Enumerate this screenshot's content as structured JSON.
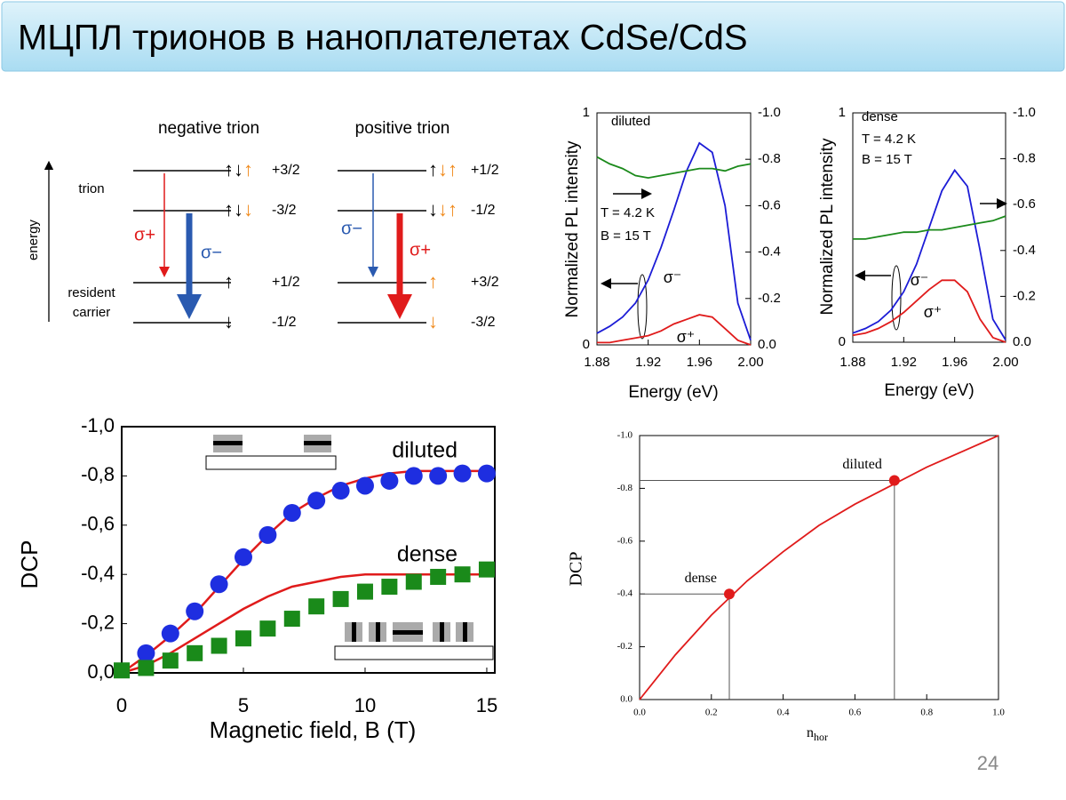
{
  "title": "МЦПЛ трионов в наноплателетах CdSe/CdS",
  "page_number": "24",
  "diagram": {
    "energy": "energy",
    "trion": "trion",
    "resident": "resident",
    "carrier": "carrier",
    "negative": {
      "title": "negative trion",
      "thin": "σ+",
      "thick": "σ−",
      "levels": [
        {
          "electron": "↑↓",
          "hole": "↑",
          "label": "+3/2"
        },
        {
          "electron": "↑↓",
          "hole": "↓",
          "label": "-3/2"
        },
        {
          "electron": "↑",
          "label": "+1/2"
        },
        {
          "electron": "↓",
          "label": "-1/2"
        }
      ]
    },
    "positive": {
      "title": "positive trion",
      "thin": "σ−",
      "thick": "σ+",
      "levels": [
        {
          "electron": "↑",
          "hole": "↓↑",
          "label": "+1/2"
        },
        {
          "electron": "↓",
          "hole": "↓↑",
          "label": "-1/2"
        },
        {
          "hole": "↑",
          "label": "+3/2"
        },
        {
          "hole": "↓",
          "label": "-3/2"
        }
      ]
    }
  },
  "chart_data": [
    {
      "type": "line",
      "xlabel": "Energy (eV)",
      "ylabel": "Normalized PL intensity",
      "annotations": [
        "diluted",
        "T = 4.2 K",
        "B = 15 T"
      ],
      "xlim": [
        1.88,
        2
      ],
      "xticks": [
        1.88,
        1.92,
        1.96,
        {
          "value": 2,
          "label": "2.00"
        }
      ],
      "ylim": [
        0,
        1
      ],
      "yticks": [
        0,
        1
      ],
      "y2lim": [
        0,
        -1
      ],
      "y2ticks": [
        {
          "value": 0,
          "label": "0.0"
        },
        {
          "value": -0.2,
          "label": "-0.2"
        },
        {
          "value": -0.4,
          "label": "-0.4"
        },
        {
          "value": -0.6,
          "label": "-0.6"
        },
        {
          "value": -0.8,
          "label": "-0.8"
        },
        {
          "value": -1,
          "label": "-1.0"
        }
      ],
      "x": [
        1.88,
        1.89,
        1.9,
        1.91,
        1.92,
        1.93,
        1.94,
        1.95,
        1.96,
        1.97,
        1.98,
        1.99,
        2
      ],
      "series": [
        {
          "name": "σ⁻",
          "color": "#1c1cd6",
          "values": [
            0.05,
            0.08,
            0.12,
            0.18,
            0.28,
            0.42,
            0.58,
            0.75,
            0.87,
            0.83,
            0.6,
            0.18,
            0.02
          ]
        },
        {
          "name": "σ⁺",
          "color": "#e01b1b",
          "values": [
            0.01,
            0.01,
            0.02,
            0.03,
            0.04,
            0.06,
            0.09,
            0.11,
            0.13,
            0.12,
            0.07,
            0.02,
            0
          ]
        },
        {
          "color": "#1b8a1b",
          "axis": "y2",
          "values": [
            -0.81,
            -0.78,
            -0.76,
            -0.73,
            -0.72,
            -0.73,
            -0.74,
            -0.75,
            -0.76,
            -0.76,
            -0.75,
            -0.77,
            -0.78
          ]
        }
      ]
    },
    {
      "type": "line",
      "xlabel": "Energy (eV)",
      "ylabel": "Normalized PL intensity",
      "annotations": [
        "dense",
        "T = 4.2 K",
        "B = 15 T"
      ],
      "xlim": [
        1.88,
        2
      ],
      "xticks": [
        1.88,
        1.92,
        1.96,
        {
          "value": 2,
          "label": "2.00"
        }
      ],
      "ylim": [
        0,
        1
      ],
      "yticks": [
        0,
        1
      ],
      "y2lim": [
        0,
        -1
      ],
      "y2ticks": [
        {
          "value": 0,
          "label": "0.0"
        },
        {
          "value": -0.2,
          "label": "-0.2"
        },
        {
          "value": -0.4,
          "label": "-0.4"
        },
        {
          "value": -0.6,
          "label": "-0.6"
        },
        {
          "value": -0.8,
          "label": "-0.8"
        },
        {
          "value": -1,
          "label": "-1.0"
        }
      ],
      "x": [
        1.88,
        1.89,
        1.9,
        1.91,
        1.92,
        1.93,
        1.94,
        1.95,
        1.96,
        1.97,
        1.98,
        1.99,
        2
      ],
      "series": [
        {
          "name": "σ⁻",
          "color": "#1c1cd6",
          "values": [
            0.04,
            0.06,
            0.09,
            0.14,
            0.22,
            0.34,
            0.5,
            0.66,
            0.75,
            0.68,
            0.4,
            0.1,
            0.01
          ]
        },
        {
          "name": "σ⁺",
          "color": "#e01b1b",
          "values": [
            0.03,
            0.04,
            0.06,
            0.09,
            0.13,
            0.18,
            0.23,
            0.27,
            0.27,
            0.22,
            0.1,
            0.02,
            0
          ]
        },
        {
          "color": "#1b8a1b",
          "axis": "y2",
          "values": [
            -0.45,
            -0.45,
            -0.46,
            -0.47,
            -0.48,
            -0.48,
            -0.49,
            -0.49,
            -0.5,
            -0.51,
            -0.52,
            -0.53,
            -0.55
          ]
        }
      ]
    },
    {
      "type": "scatter",
      "xlabel": "Magnetic field, B (T)",
      "ylabel": "DCP",
      "xlim": [
        0,
        15.33
      ],
      "xticks": [
        0,
        5,
        10,
        15
      ],
      "ylim": [
        0,
        -1
      ],
      "yticks": [
        {
          "value": 0,
          "label": "0,0"
        },
        {
          "value": -0.2,
          "label": "-0,2"
        },
        {
          "value": -0.4,
          "label": "-0,4"
        },
        {
          "value": -0.6,
          "label": "-0,6"
        },
        {
          "value": -0.8,
          "label": "-0,8"
        },
        {
          "value": -1,
          "label": "-1,0"
        }
      ],
      "series": [
        {
          "color": "#e01b1b",
          "marker": "none",
          "x": [
            0,
            1,
            2,
            3,
            4,
            5,
            6,
            7,
            8,
            9,
            10,
            11,
            12,
            13,
            14,
            15.33
          ],
          "values": [
            0,
            -0.07,
            -0.15,
            -0.24,
            -0.35,
            -0.46,
            -0.56,
            -0.65,
            -0.71,
            -0.76,
            -0.79,
            -0.81,
            -0.82,
            -0.82,
            -0.82,
            -0.82
          ]
        },
        {
          "color": "#e01b1b",
          "marker": "none",
          "x": [
            0,
            1,
            2,
            3,
            4,
            5,
            6,
            7,
            8,
            9,
            10,
            11,
            12,
            13,
            14,
            15.33
          ],
          "values": [
            0,
            -0.03,
            -0.08,
            -0.14,
            -0.2,
            -0.26,
            -0.31,
            -0.35,
            -0.37,
            -0.39,
            -0.4,
            -0.4,
            -0.4,
            -0.4,
            -0.4,
            -0.4
          ]
        },
        {
          "name": "diluted",
          "color": "#1e2ee0",
          "marker": "circle",
          "x": [
            1,
            2,
            3,
            4,
            5,
            6,
            7,
            8,
            9,
            10,
            11,
            12,
            13,
            14,
            15
          ],
          "values": [
            -0.08,
            -0.16,
            -0.25,
            -0.36,
            -0.47,
            -0.56,
            -0.65,
            -0.7,
            -0.74,
            -0.76,
            -0.78,
            -0.8,
            -0.8,
            -0.81,
            -0.81
          ]
        },
        {
          "name": "dense",
          "color": "#1a8a1a",
          "marker": "square",
          "x": [
            0,
            1,
            2,
            3,
            4,
            5,
            6,
            7,
            8,
            9,
            10,
            11,
            12,
            13,
            14,
            15
          ],
          "values": [
            -0.01,
            -0.02,
            -0.05,
            -0.08,
            -0.11,
            -0.14,
            -0.18,
            -0.22,
            -0.27,
            -0.3,
            -0.33,
            -0.35,
            -0.37,
            -0.39,
            -0.4,
            -0.42
          ]
        }
      ]
    },
    {
      "type": "line",
      "xlabel": "n",
      "xlabel_sub": "hor",
      "ylabel": "DCP",
      "xlim": [
        0,
        1
      ],
      "xticks": [
        {
          "value": 0,
          "label": "0.0"
        },
        {
          "value": 0.2,
          "label": "0.2"
        },
        {
          "value": 0.4,
          "label": "0.4"
        },
        {
          "value": 0.6,
          "label": "0.6"
        },
        {
          "value": 0.8,
          "label": "0.8"
        },
        {
          "value": 1,
          "label": "1.0"
        }
      ],
      "ylim": [
        0,
        -1
      ],
      "yticks": [
        {
          "value": 0,
          "label": "0.0"
        },
        {
          "value": -0.2,
          "label": "-0.2"
        },
        {
          "value": -0.4,
          "label": "-0.4"
        },
        {
          "value": -0.6,
          "label": "-0.6"
        },
        {
          "value": -0.8,
          "label": "-0.8"
        },
        {
          "value": -1,
          "label": "-1.0"
        }
      ],
      "x": [
        0,
        0.1,
        0.2,
        0.3,
        0.4,
        0.5,
        0.6,
        0.7,
        0.8,
        0.9,
        1
      ],
      "series": [
        {
          "color": "#e01b1b",
          "values": [
            0,
            -0.17,
            -0.32,
            -0.45,
            -0.56,
            -0.66,
            -0.74,
            -0.81,
            -0.88,
            -0.94,
            -1
          ]
        }
      ],
      "points": [
        {
          "label": "dense",
          "x": 0.25,
          "y": -0.4,
          "color": "#e01b1b"
        },
        {
          "label": "diluted",
          "x": 0.71,
          "y": -0.83,
          "color": "#e01b1b"
        }
      ]
    }
  ]
}
